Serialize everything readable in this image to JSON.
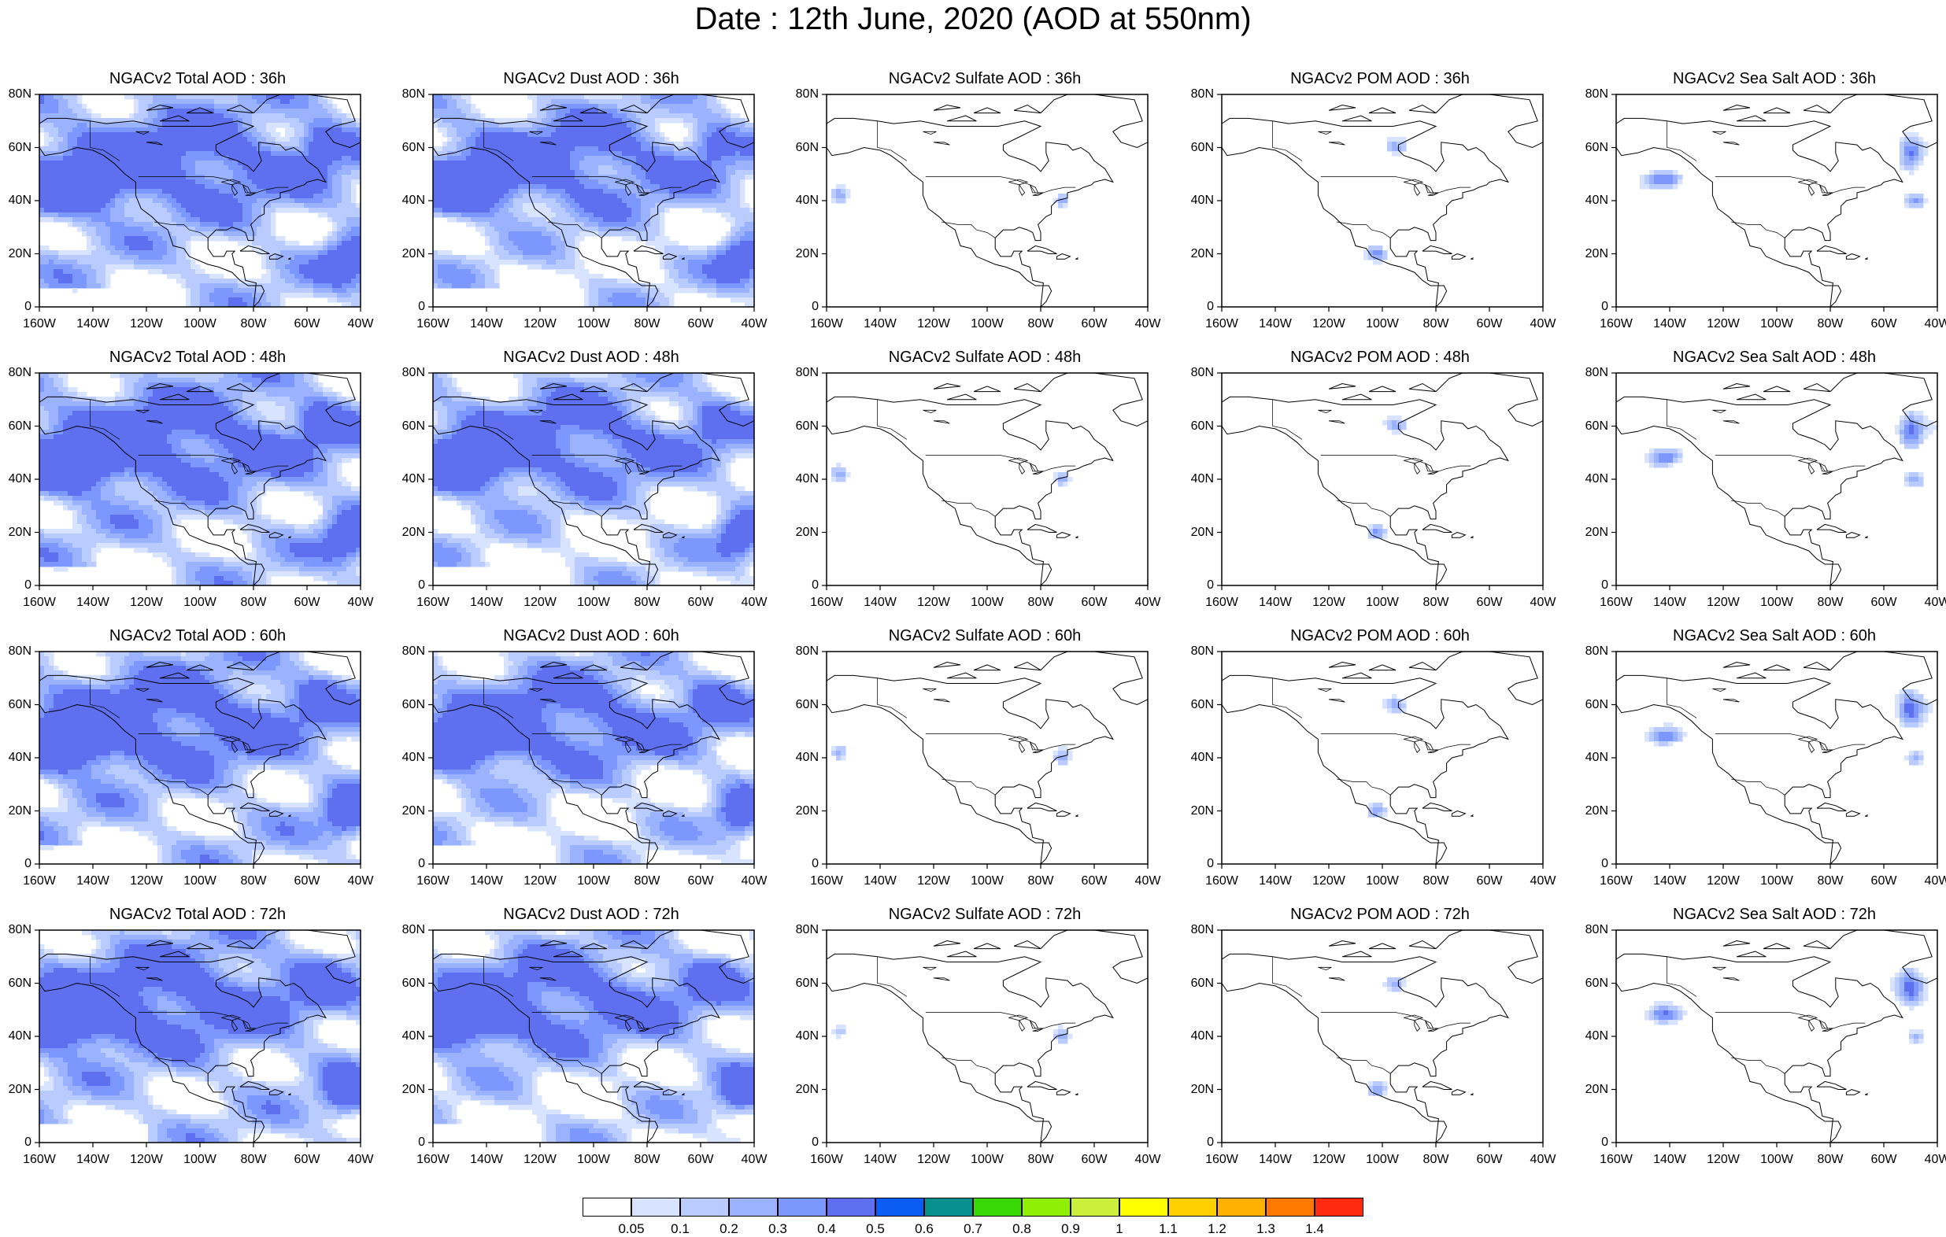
{
  "title": "Date : 12th June, 2020 (AOD at 550nm)",
  "columns": [
    "total",
    "dust",
    "sulfate",
    "pom",
    "seasalt"
  ],
  "column_titles": {
    "total": "NGACv2 Total AOD",
    "dust": "NGACv2 Dust AOD",
    "sulfate": "NGACv2 Sulfate AOD",
    "pom": "NGACv2 POM AOD",
    "seasalt": "NGACv2 Sea Salt AOD"
  },
  "panels": [
    {
      "title": "NGACv2 Total AOD : 36h",
      "field": "total",
      "hour": "36h"
    },
    {
      "title": "NGACv2 Dust AOD : 36h",
      "field": "dust",
      "hour": "36h"
    },
    {
      "title": "NGACv2 Sulfate AOD : 36h",
      "field": "sulfate",
      "hour": "36h"
    },
    {
      "title": "NGACv2 POM AOD : 36h",
      "field": "pom",
      "hour": "36h"
    },
    {
      "title": "NGACv2 Sea Salt AOD : 36h",
      "field": "seasalt",
      "hour": "36h"
    },
    {
      "title": "NGACv2 Total AOD : 48h",
      "field": "total",
      "hour": "48h"
    },
    {
      "title": "NGACv2 Dust AOD : 48h",
      "field": "dust",
      "hour": "48h"
    },
    {
      "title": "NGACv2 Sulfate AOD : 48h",
      "field": "sulfate",
      "hour": "48h"
    },
    {
      "title": "NGACv2 POM AOD : 48h",
      "field": "pom",
      "hour": "48h"
    },
    {
      "title": "NGACv2 Sea Salt AOD : 48h",
      "field": "seasalt",
      "hour": "48h"
    },
    {
      "title": "NGACv2 Total AOD : 60h",
      "field": "total",
      "hour": "60h"
    },
    {
      "title": "NGACv2 Dust AOD : 60h",
      "field": "dust",
      "hour": "60h"
    },
    {
      "title": "NGACv2 Sulfate AOD : 60h",
      "field": "sulfate",
      "hour": "60h"
    },
    {
      "title": "NGACv2 POM AOD : 60h",
      "field": "pom",
      "hour": "60h"
    },
    {
      "title": "NGACv2 Sea Salt AOD : 60h",
      "field": "seasalt",
      "hour": "60h"
    },
    {
      "title": "NGACv2 Total AOD : 72h",
      "field": "total",
      "hour": "72h"
    },
    {
      "title": "NGACv2 Dust AOD : 72h",
      "field": "dust",
      "hour": "72h"
    },
    {
      "title": "NGACv2 Sulfate AOD : 72h",
      "field": "sulfate",
      "hour": "72h"
    },
    {
      "title": "NGACv2 POM AOD : 72h",
      "field": "pom",
      "hour": "72h"
    },
    {
      "title": "NGACv2 Sea Salt  AOD : 72h",
      "field": "seasalt",
      "hour": "72h"
    }
  ],
  "lat_ticks": [
    "0",
    "20N",
    "40N",
    "60N",
    "80N"
  ],
  "lon_ticks": [
    "160W",
    "140W",
    "120W",
    "100W",
    "80W",
    "60W",
    "40W"
  ],
  "extent": {
    "lon_min": -160,
    "lon_max": -40,
    "lat_min": 0,
    "lat_max": 80
  },
  "colorbar": {
    "levels": [
      "0.05",
      "0.1",
      "0.2",
      "0.3",
      "0.4",
      "0.5",
      "0.6",
      "0.7",
      "0.8",
      "0.9",
      "1",
      "1.1",
      "1.2",
      "1.3",
      "1.4"
    ],
    "colors": [
      "#ffffff",
      "#d7e3ff",
      "#b9cbff",
      "#9bb2ff",
      "#7c98ff",
      "#5e70f0",
      "#0a5cf5",
      "#07918e",
      "#38d806",
      "#8ff006",
      "#caf03c",
      "#ffff00",
      "#ffd000",
      "#ffb000",
      "#ff7800",
      "#ff2a10"
    ]
  }
}
